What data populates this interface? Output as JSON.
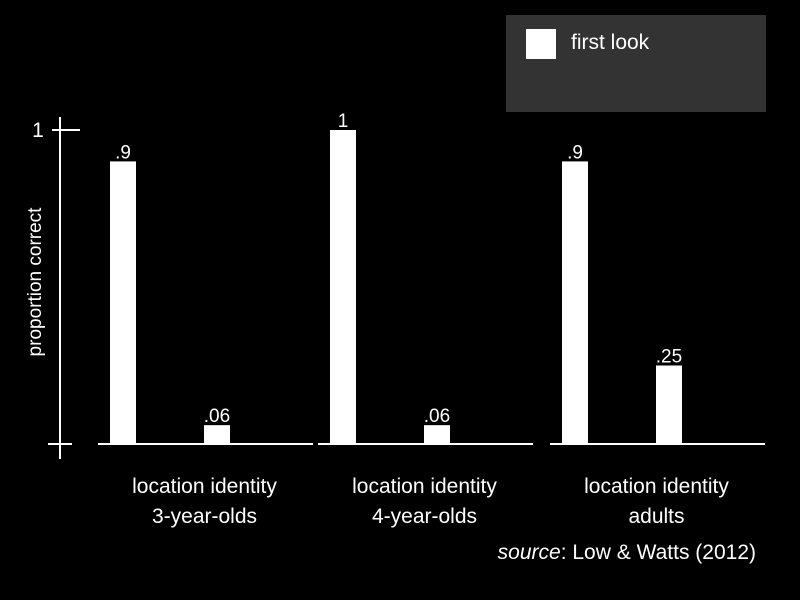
{
  "chart_data": {
    "type": "bar",
    "ylabel": "proportion correct",
    "ylim": [
      0,
      1
    ],
    "y_ticks": [
      {
        "value": 1,
        "label": "1"
      }
    ],
    "groups": [
      {
        "name": "3-year-olds",
        "categories": [
          "location",
          "identity"
        ],
        "values": [
          0.9,
          0.06
        ],
        "labels": [
          ".9",
          ".06"
        ]
      },
      {
        "name": "4-year-olds",
        "categories": [
          "location",
          "identity"
        ],
        "values": [
          1,
          0.06
        ],
        "labels": [
          "1",
          ".06"
        ]
      },
      {
        "name": "adults",
        "categories": [
          "location",
          "identity"
        ],
        "values": [
          0.9,
          0.25
        ],
        "labels": [
          ".9",
          ".25"
        ]
      }
    ],
    "legend": {
      "entries": [
        {
          "label": "first look",
          "color": "#ffffff"
        }
      ],
      "position": "top-right"
    },
    "source": {
      "prefix": "source",
      "text": ": Low & Watts (2012)"
    }
  },
  "colors": {
    "background": "#000000",
    "bar": "#ffffff",
    "legend_background": "#333333"
  }
}
